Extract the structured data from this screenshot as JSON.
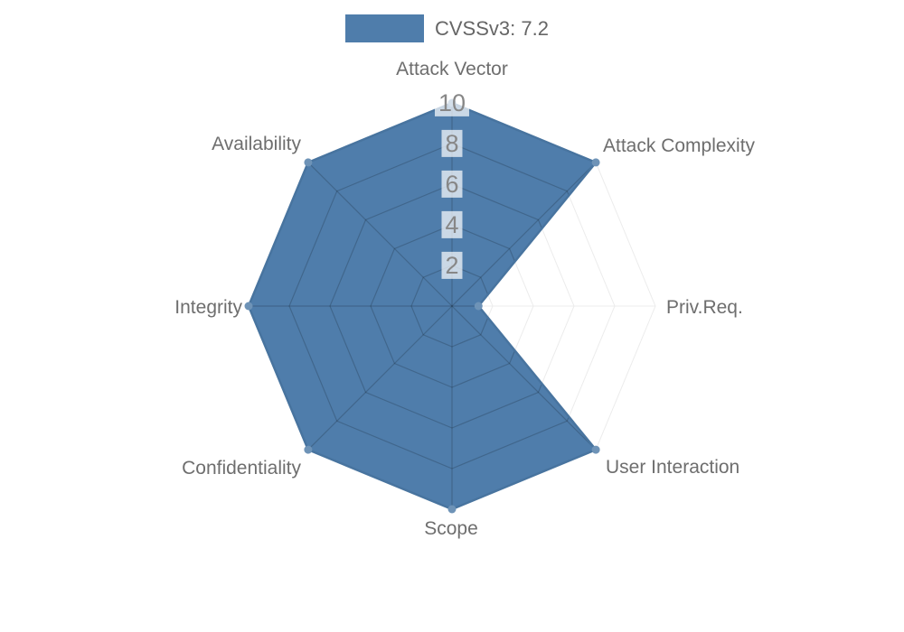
{
  "legend": {
    "items": [
      {
        "label": "CVSSv3: 7.2",
        "color": "#4f7dab"
      }
    ]
  },
  "chart_data": {
    "type": "radar",
    "title": "",
    "axes": [
      "Attack Vector",
      "Attack Complexity",
      "Priv.Req.",
      "User Interaction",
      "Scope",
      "Confidentiality",
      "Integrity",
      "Availability"
    ],
    "series": [
      {
        "name": "CVSSv3: 7.2",
        "values": [
          10,
          10,
          1.3,
          10,
          10,
          10,
          10,
          10
        ]
      }
    ],
    "scale": {
      "min": 0,
      "max": 10,
      "ticks": [
        2,
        4,
        6,
        8,
        10
      ]
    },
    "legend_position": "top",
    "grid": "polygonal web with radial spokes; clearly visible only over the filled data area",
    "colors": {
      "fill": "#4f7dab",
      "border": "#48749f",
      "point": "#6e93b7",
      "grid_faint": "#ececec",
      "grid_over_fill": "rgba(0,0,0,0.18)",
      "axis_label": "#6e6e6e",
      "tick_label": "#878787",
      "tick_backdrop": "rgba(255,255,255,0.7)",
      "legend_text": "#666666"
    }
  }
}
